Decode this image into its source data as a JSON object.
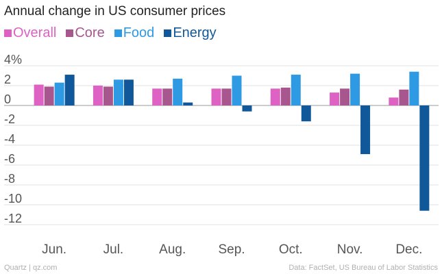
{
  "chart_data": {
    "type": "bar",
    "title": "Annual change in US consumer prices",
    "xlabel": "",
    "ylabel": "",
    "ylim": [
      -12,
      4
    ],
    "y_ticks": [
      4,
      2,
      0,
      -2,
      -4,
      -6,
      -8,
      -10,
      -12
    ],
    "y_tick_labels": [
      "4%",
      "2",
      "0",
      "-2",
      "-4",
      "-6",
      "-8",
      "-10",
      "-12"
    ],
    "categories": [
      "Jun.",
      "Jul.",
      "Aug.",
      "Sep.",
      "Oct.",
      "Nov.",
      "Dec."
    ],
    "series": [
      {
        "name": "Overall",
        "color": "#dd62c4",
        "values": [
          2.1,
          2.0,
          1.7,
          1.7,
          1.7,
          1.3,
          0.8
        ]
      },
      {
        "name": "Core",
        "color": "#a8578e",
        "values": [
          1.9,
          1.9,
          1.7,
          1.7,
          1.8,
          1.7,
          1.6
        ]
      },
      {
        "name": "Food",
        "color": "#2d9ae3",
        "values": [
          2.3,
          2.6,
          2.7,
          3.0,
          3.1,
          3.2,
          3.4
        ]
      },
      {
        "name": "Energy",
        "color": "#10589a",
        "values": [
          3.1,
          2.6,
          0.3,
          -0.6,
          -1.6,
          -4.9,
          -10.6
        ]
      }
    ]
  },
  "footer": {
    "source": "Quartz | qz.com",
    "credit": "Data: FactSet, US Bureau of Labor Statistics"
  }
}
